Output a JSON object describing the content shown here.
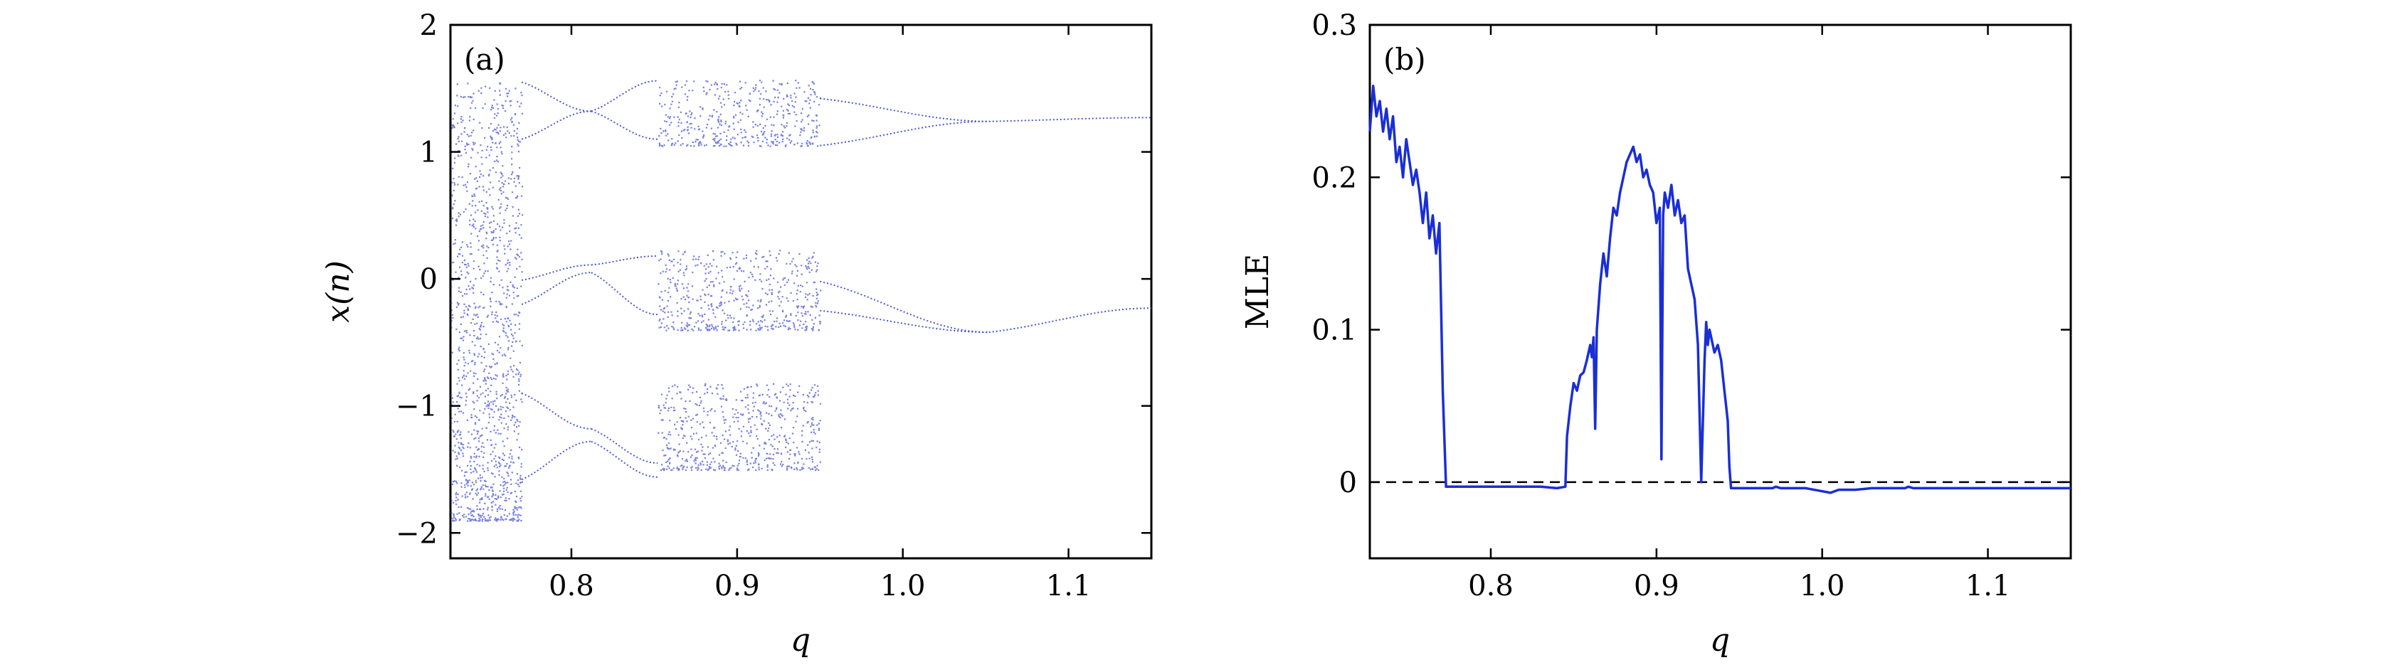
{
  "chart_data": [
    {
      "type": "scatter",
      "panel_label": "(a)",
      "xlabel": "q",
      "ylabel": "x(n)",
      "xlim": [
        0.727,
        1.15
      ],
      "ylim": [
        -2.2,
        2.0
      ],
      "x_ticks": [
        0.8,
        0.9,
        1.0,
        1.1
      ],
      "x_tick_labels": [
        "0.8",
        "0.9",
        "1.0",
        "1.1"
      ],
      "y_ticks": [
        -2,
        -1,
        0,
        1,
        2
      ],
      "y_tick_labels": [
        "−2",
        "−1",
        "0",
        "1",
        "2"
      ],
      "grid": false,
      "point_color": "#4a56d6",
      "regions": [
        {
          "kind": "chaos",
          "q": [
            0.727,
            0.77
          ],
          "bands": [
            [
              -1.9,
              1.55
            ]
          ]
        },
        {
          "kind": "orbit",
          "q": [
            0.77,
            0.812
          ],
          "branches": [
            [
              1.55,
              1.32
            ],
            [
              1.1,
              1.32
            ],
            [
              -0.01,
              0.11
            ],
            [
              -0.2,
              0.05
            ],
            [
              -1.58,
              -1.28
            ],
            [
              -0.9,
              -1.18
            ]
          ]
        },
        {
          "kind": "orbit",
          "q": [
            0.812,
            0.852
          ],
          "branches": [
            [
              1.32,
              1.56
            ],
            [
              1.32,
              1.1
            ],
            [
              0.11,
              0.18
            ],
            [
              0.05,
              -0.28
            ],
            [
              -1.28,
              -1.56
            ],
            [
              -1.18,
              -1.45
            ]
          ]
        },
        {
          "kind": "chaos",
          "q": [
            0.852,
            0.95
          ],
          "bands": [
            [
              1.05,
              1.57
            ],
            [
              -0.4,
              0.23
            ],
            [
              -1.5,
              -0.82
            ]
          ]
        },
        {
          "kind": "orbit",
          "q": [
            0.95,
            1.052
          ],
          "branches": [
            [
              1.42,
              1.24
            ],
            [
              1.05,
              1.24
            ],
            [
              -0.02,
              -0.42
            ],
            [
              -0.25,
              -0.42
            ]
          ]
        },
        {
          "kind": "orbit",
          "q": [
            1.052,
            1.15
          ],
          "branches": [
            [
              1.24,
              1.27
            ],
            [
              -0.42,
              -0.23
            ]
          ]
        }
      ]
    },
    {
      "type": "line",
      "panel_label": "(b)",
      "xlabel": "q",
      "ylabel": "MLE",
      "xlim": [
        0.727,
        1.15
      ],
      "ylim": [
        -0.05,
        0.3
      ],
      "x_ticks": [
        0.8,
        0.9,
        1.0,
        1.1
      ],
      "x_tick_labels": [
        "0.8",
        "0.9",
        "1.0",
        "1.1"
      ],
      "y_ticks": [
        0,
        0.1,
        0.2,
        0.3
      ],
      "y_tick_labels": [
        "0",
        "0.1",
        "0.2",
        "0.3"
      ],
      "grid": false,
      "line_color": "#1a2ed6",
      "reference_line": {
        "y": 0,
        "style": "dashed",
        "color": "#000000"
      },
      "x": [
        0.727,
        0.729,
        0.731,
        0.733,
        0.735,
        0.737,
        0.739,
        0.741,
        0.743,
        0.745,
        0.747,
        0.749,
        0.751,
        0.753,
        0.755,
        0.757,
        0.759,
        0.761,
        0.763,
        0.765,
        0.767,
        0.769,
        0.771,
        0.773,
        0.78,
        0.79,
        0.8,
        0.81,
        0.82,
        0.83,
        0.84,
        0.845,
        0.846,
        0.848,
        0.85,
        0.852,
        0.854,
        0.856,
        0.858,
        0.86,
        0.861,
        0.862,
        0.863,
        0.864,
        0.866,
        0.868,
        0.87,
        0.872,
        0.874,
        0.876,
        0.878,
        0.88,
        0.882,
        0.884,
        0.886,
        0.888,
        0.89,
        0.892,
        0.894,
        0.896,
        0.898,
        0.9,
        0.902,
        0.903,
        0.904,
        0.905,
        0.907,
        0.909,
        0.911,
        0.913,
        0.915,
        0.917,
        0.919,
        0.921,
        0.923,
        0.925,
        0.927,
        0.929,
        0.93,
        0.931,
        0.932,
        0.933,
        0.935,
        0.937,
        0.939,
        0.941,
        0.942,
        0.943,
        0.944,
        0.945,
        0.95,
        0.96,
        0.97,
        0.972,
        0.975,
        0.98,
        0.99,
        1.0,
        1.005,
        1.01,
        1.02,
        1.03,
        1.04,
        1.05,
        1.052,
        1.055,
        1.06,
        1.08,
        1.1,
        1.12,
        1.15
      ],
      "y": [
        0.23,
        0.26,
        0.24,
        0.25,
        0.23,
        0.245,
        0.225,
        0.24,
        0.21,
        0.22,
        0.2,
        0.225,
        0.21,
        0.195,
        0.205,
        0.19,
        0.17,
        0.19,
        0.16,
        0.175,
        0.15,
        0.17,
        0.06,
        -0.003,
        -0.003,
        -0.003,
        -0.003,
        -0.003,
        -0.003,
        -0.003,
        -0.004,
        -0.003,
        0.03,
        0.05,
        0.065,
        0.06,
        0.07,
        0.072,
        0.08,
        0.09,
        0.082,
        0.095,
        0.035,
        0.1,
        0.13,
        0.15,
        0.135,
        0.16,
        0.18,
        0.175,
        0.19,
        0.2,
        0.21,
        0.215,
        0.22,
        0.21,
        0.215,
        0.2,
        0.205,
        0.195,
        0.19,
        0.17,
        0.18,
        0.015,
        0.175,
        0.19,
        0.18,
        0.195,
        0.175,
        0.185,
        0.17,
        0.175,
        0.14,
        0.13,
        0.12,
        0.09,
        0.0,
        0.08,
        0.105,
        0.09,
        0.1,
        0.095,
        0.085,
        0.09,
        0.08,
        0.06,
        0.05,
        0.04,
        0.01,
        -0.004,
        -0.004,
        -0.004,
        -0.004,
        -0.003,
        -0.004,
        -0.004,
        -0.004,
        -0.006,
        -0.007,
        -0.005,
        -0.005,
        -0.004,
        -0.004,
        -0.004,
        -0.003,
        -0.004,
        -0.004,
        -0.004,
        -0.004,
        -0.004,
        -0.004
      ]
    }
  ]
}
